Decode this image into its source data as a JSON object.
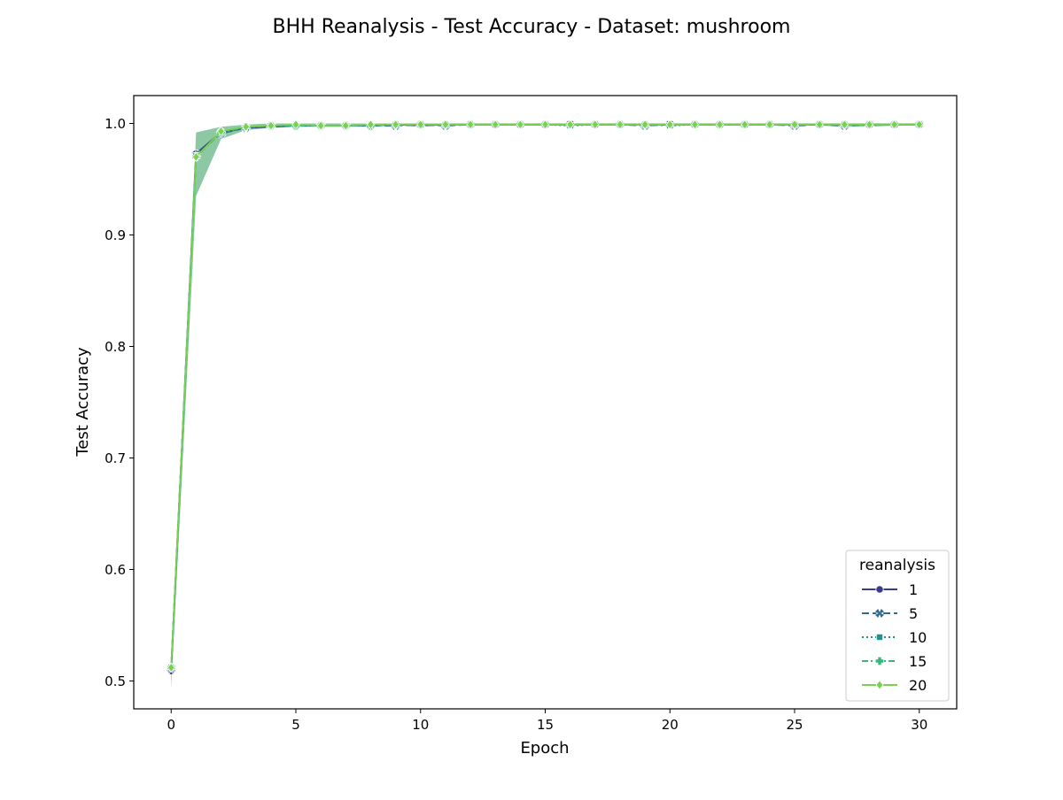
{
  "chart_data": {
    "type": "line",
    "title": "BHH Reanalysis - Test Accuracy - Dataset: mushroom",
    "xlabel": "Epoch",
    "ylabel": "Test Accuracy",
    "xlim": [
      -1.5,
      31.5
    ],
    "ylim": [
      0.475,
      1.025
    ],
    "xticks": [
      0,
      5,
      10,
      15,
      20,
      25,
      30
    ],
    "xtick_labels": [
      "0",
      "5",
      "10",
      "15",
      "20",
      "25",
      "30"
    ],
    "yticks": [
      0.5,
      0.6,
      0.7,
      0.8,
      0.9,
      1.0
    ],
    "ytick_labels": [
      "0.5",
      "0.6",
      "0.7",
      "0.8",
      "0.9",
      "1.0"
    ],
    "grid": false,
    "legend": {
      "title": "reanalysis",
      "placement": "lower right"
    },
    "x": [
      0,
      1,
      2,
      3,
      4,
      5,
      6,
      7,
      8,
      9,
      10,
      11,
      12,
      13,
      14,
      15,
      16,
      17,
      18,
      19,
      20,
      21,
      22,
      23,
      24,
      25,
      26,
      27,
      28,
      29,
      30
    ],
    "confidence_band": {
      "color": "#2e9a5a",
      "lower": [
        0.493,
        0.935,
        0.986,
        0.994,
        0.996,
        0.997,
        0.997,
        0.997,
        0.998,
        0.998,
        0.998,
        0.998,
        0.998,
        0.998,
        0.998,
        0.998,
        0.998,
        0.998,
        0.998,
        0.998,
        0.998,
        0.998,
        0.998,
        0.998,
        0.998,
        0.998,
        0.998,
        0.997,
        0.997,
        0.998,
        0.998
      ],
      "upper": [
        0.525,
        0.992,
        0.997,
        0.999,
        1.0,
        1.0,
        1.0,
        1.0,
        1.0,
        1.0,
        1.0,
        1.0,
        1.0,
        1.0,
        1.0,
        1.0,
        1.0,
        1.0,
        1.0,
        1.0,
        1.0,
        1.0,
        1.0,
        1.0,
        1.0,
        1.0,
        1.0,
        1.0,
        1.0,
        1.0,
        1.0
      ]
    },
    "series": [
      {
        "name": "1",
        "color": "#3b3b8b",
        "dash": "solid",
        "marker": "circle",
        "values": [
          0.509,
          0.973,
          0.992,
          0.996,
          0.997,
          0.998,
          0.998,
          0.998,
          0.998,
          0.999,
          0.998,
          0.999,
          0.999,
          0.999,
          0.999,
          0.999,
          0.999,
          0.999,
          0.999,
          0.999,
          0.999,
          0.999,
          0.999,
          0.999,
          0.999,
          0.999,
          0.999,
          0.999,
          0.999,
          0.999,
          0.999
        ]
      },
      {
        "name": "5",
        "color": "#2f6a8f",
        "dash": "dashed",
        "marker": "x",
        "values": [
          0.511,
          0.972,
          0.991,
          0.996,
          0.998,
          0.998,
          0.998,
          0.998,
          0.998,
          0.998,
          0.999,
          0.998,
          0.999,
          0.999,
          0.999,
          0.999,
          0.999,
          0.999,
          0.999,
          0.998,
          0.999,
          0.999,
          0.999,
          0.999,
          0.999,
          0.998,
          0.999,
          0.998,
          0.999,
          0.999,
          0.999
        ]
      },
      {
        "name": "10",
        "color": "#21918c",
        "dash": "dotted",
        "marker": "square",
        "values": [
          0.512,
          0.971,
          0.992,
          0.996,
          0.998,
          0.998,
          0.998,
          0.998,
          0.998,
          0.999,
          0.999,
          0.999,
          0.999,
          0.999,
          0.999,
          0.999,
          0.998,
          0.999,
          0.999,
          0.999,
          0.998,
          0.999,
          0.999,
          0.999,
          0.999,
          0.999,
          0.999,
          0.999,
          0.999,
          0.999,
          0.999
        ]
      },
      {
        "name": "15",
        "color": "#35b779",
        "dash": "dashdot",
        "marker": "plus",
        "values": [
          0.512,
          0.97,
          0.992,
          0.997,
          0.998,
          0.998,
          0.998,
          0.998,
          0.998,
          0.999,
          0.999,
          0.999,
          0.999,
          0.999,
          0.999,
          0.999,
          0.999,
          0.999,
          0.999,
          0.999,
          0.999,
          0.999,
          0.999,
          0.999,
          0.999,
          0.999,
          0.999,
          0.999,
          0.999,
          0.999,
          0.999
        ]
      },
      {
        "name": "20",
        "color": "#7ad151",
        "dash": "solid",
        "marker": "diamond",
        "values": [
          0.512,
          0.97,
          0.993,
          0.997,
          0.998,
          0.999,
          0.998,
          0.998,
          0.999,
          0.999,
          0.999,
          0.999,
          0.999,
          0.999,
          0.999,
          0.999,
          0.999,
          0.999,
          0.999,
          0.999,
          0.999,
          0.999,
          0.999,
          0.999,
          0.999,
          0.999,
          0.999,
          0.999,
          0.999,
          0.999,
          0.999
        ]
      }
    ]
  }
}
